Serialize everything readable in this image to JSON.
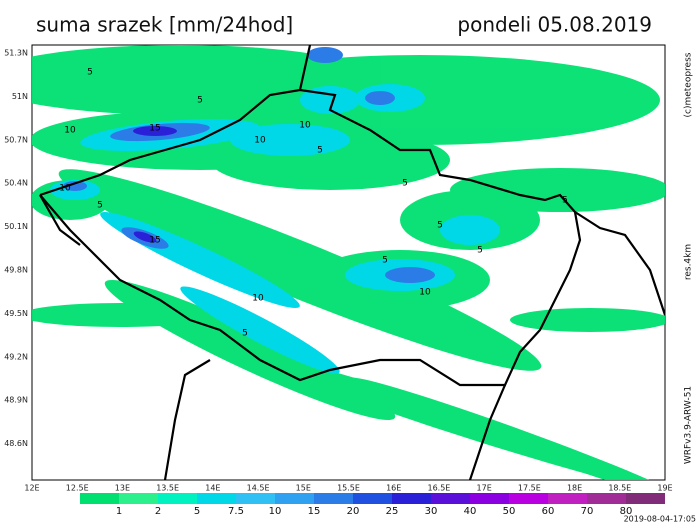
{
  "header": {
    "title": "suma srazek [mm/24hod]",
    "date": "pondeli 05.08.2019"
  },
  "axes": {
    "lat_labels": [
      "51.3N",
      "51N",
      "50.7N",
      "50.4N",
      "50.1N",
      "49.8N",
      "49.5N",
      "49.2N",
      "48.9N",
      "48.6N"
    ],
    "lon_labels": [
      "12E",
      "12.5E",
      "13E",
      "13.5E",
      "14E",
      "14.5E",
      "15E",
      "15.5E",
      "16E",
      "16.5E",
      "17E",
      "17.5E",
      "18E",
      "18.5E",
      "19E"
    ]
  },
  "contour_labels": [
    5,
    5,
    10,
    15,
    10,
    10,
    5,
    15,
    10,
    5,
    10,
    5,
    5,
    10,
    5,
    5,
    5,
    5
  ],
  "legend": {
    "labels": [
      1,
      2,
      5,
      7.5,
      10,
      15,
      20,
      25,
      30,
      40,
      50,
      60,
      70,
      80
    ],
    "colors": [
      "#00e070",
      "#2cf08c",
      "#00f2c0",
      "#00d8e8",
      "#30c0f4",
      "#30a0f0",
      "#2c7ce8",
      "#2050e0",
      "#2a20d8",
      "#5a10d8",
      "#8a00e0",
      "#b800e0",
      "#c020c0",
      "#a02c98",
      "#802c78"
    ]
  },
  "credits": {
    "copyright": "(c)meteopress",
    "resolution": "res.4km",
    "model": "WRFv3.9-ARW-51",
    "timestamp": "2019-08-04-17:05"
  }
}
